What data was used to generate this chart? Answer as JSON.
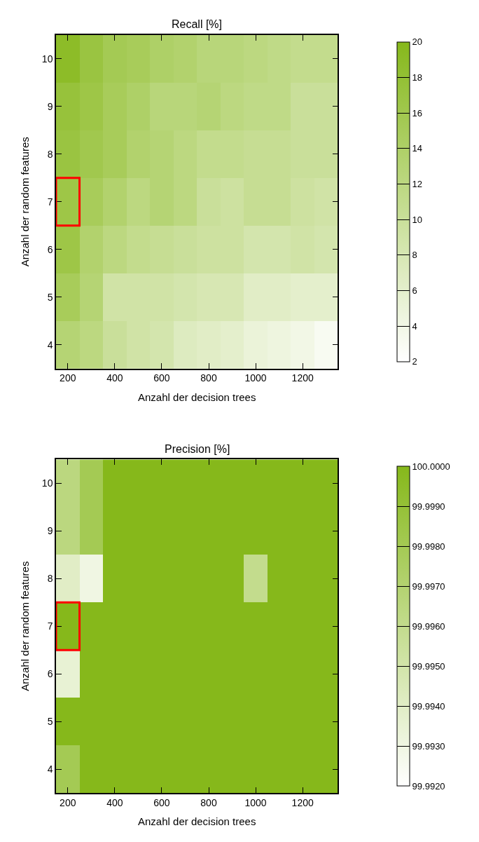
{
  "chart_data": [
    {
      "type": "heatmap",
      "title": "Recall [%]",
      "xlabel": "Anzahl der decision trees",
      "ylabel": "Anzahl der random features",
      "x": [
        200,
        300,
        400,
        500,
        600,
        700,
        800,
        900,
        1000,
        1100,
        1200,
        1300
      ],
      "y_categories": [
        "10",
        "9",
        "8",
        "7",
        "6",
        "5",
        "4"
      ],
      "cells": [
        [
          19,
          17,
          15.5,
          15,
          14,
          13.5,
          12.5,
          12.5,
          12,
          11.5,
          11,
          11
        ],
        [
          17.5,
          16.5,
          15,
          14,
          12.5,
          12.5,
          13,
          12,
          11.5,
          11.5,
          10,
          10
        ],
        [
          17,
          16,
          15,
          13.5,
          13,
          12,
          11,
          11,
          10.5,
          10.5,
          10,
          10
        ],
        [
          16.5,
          15,
          13.5,
          12,
          13,
          12,
          10,
          9.5,
          10.5,
          10.5,
          9.5,
          9
        ],
        [
          16.5,
          13.5,
          12,
          11,
          10.5,
          10,
          9.5,
          9.5,
          8.5,
          8.5,
          9,
          8.5
        ],
        [
          15,
          13,
          9,
          9,
          9,
          8.5,
          8,
          8,
          6.5,
          6.5,
          6,
          6
        ],
        [
          13,
          12,
          10,
          9,
          8.5,
          7,
          6.5,
          6,
          5,
          4.5,
          4,
          3
        ]
      ],
      "colors": [
        "#ffffff",
        "#86b81b"
      ],
      "xlim": [
        150,
        1350
      ],
      "xticks": [
        200,
        400,
        600,
        800,
        1000,
        1200
      ],
      "clim": [
        2,
        20
      ],
      "cticks": [
        2,
        4,
        6,
        8,
        10,
        12,
        14,
        16,
        18,
        20
      ]
    },
    {
      "type": "heatmap",
      "title": "Precision [%]",
      "xlabel": "Anzahl der decision trees",
      "ylabel": "Anzahl der random features",
      "x": [
        200,
        300,
        400,
        500,
        600,
        700,
        800,
        900,
        1000,
        1100,
        1200,
        1300
      ],
      "y_categories": [
        "10",
        "9",
        "8",
        "7",
        "6",
        "5",
        "4"
      ],
      "cells": [
        [
          99.9965,
          99.998,
          100,
          100,
          100,
          100,
          100,
          100,
          100,
          100,
          100,
          100
        ],
        [
          99.9965,
          99.998,
          100,
          100,
          100,
          100,
          100,
          100,
          100,
          100,
          100,
          100
        ],
        [
          99.994,
          99.993,
          100,
          100,
          100,
          100,
          100,
          100,
          99.996,
          100,
          100,
          100
        ],
        [
          100,
          100,
          100,
          100,
          100,
          100,
          100,
          100,
          100,
          100,
          100,
          100
        ],
        [
          99.9935,
          100,
          100,
          100,
          100,
          100,
          100,
          100,
          100,
          100,
          100,
          100
        ],
        [
          100,
          100,
          100,
          100,
          100,
          100,
          100,
          100,
          100,
          100,
          100,
          100
        ],
        [
          99.998,
          100,
          100,
          100,
          100,
          100,
          100,
          100,
          100,
          100,
          100,
          100
        ]
      ],
      "colors": [
        "#ffffff",
        "#86b81b"
      ],
      "xlim": [
        150,
        1350
      ],
      "xticks": [
        200,
        400,
        600,
        800,
        1000,
        1200
      ],
      "clim": [
        99.992,
        100
      ],
      "cticks": [
        {
          "value": 99.992,
          "label": "99.9920"
        },
        {
          "value": 99.993,
          "label": "99.9930"
        },
        {
          "value": 99.994,
          "label": "99.9940"
        },
        {
          "value": 99.995,
          "label": "99.9950"
        },
        {
          "value": 99.996,
          "label": "99.9960"
        },
        {
          "value": 99.997,
          "label": "99.9970"
        },
        {
          "value": 99.998,
          "label": "99.9980"
        },
        {
          "value": 99.999,
          "label": "99.9990"
        },
        {
          "value": 100,
          "label": "100.0000"
        }
      ]
    }
  ]
}
